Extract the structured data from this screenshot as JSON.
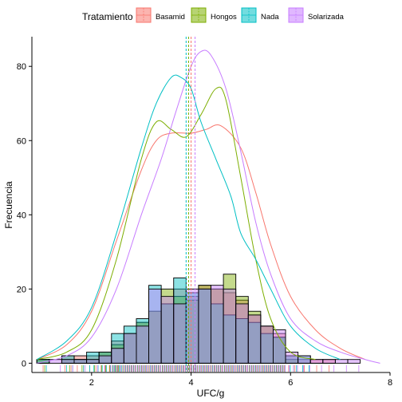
{
  "chart_data": {
    "type": "histogram",
    "xlabel": "UFC/g",
    "ylabel": "Frecuencia",
    "xlim": [
      0.8,
      8.0
    ],
    "ylim": [
      -2.5,
      88
    ],
    "x_ticks": [
      2,
      4,
      6,
      8
    ],
    "y_ticks": [
      0,
      20,
      40,
      60,
      80
    ],
    "legend": {
      "title": "Tratamiento",
      "position": "top",
      "entries": [
        {
          "name": "Basamid",
          "color": "#F8766D"
        },
        {
          "name": "Hongos",
          "color": "#7CAE00"
        },
        {
          "name": "Nada",
          "color": "#00BFC4"
        },
        {
          "name": "Solarizada",
          "color": "#C77CFF"
        }
      ]
    },
    "bins": {
      "start": 0.9,
      "width": 0.25,
      "count": 26
    },
    "series": [
      {
        "name": "Basamid",
        "color": "#F8766D",
        "counts": [
          1,
          0,
          2,
          2,
          2,
          3,
          6,
          8,
          11,
          14,
          16,
          20,
          18,
          21,
          20,
          19,
          17,
          13,
          10,
          8,
          2,
          1,
          1,
          1,
          0,
          0
        ],
        "density_x": [
          0.9,
          1.5,
          2.0,
          2.5,
          3.0,
          3.3,
          3.6,
          4.0,
          4.3,
          4.6,
          5.0,
          5.3,
          5.6,
          6.0,
          6.5,
          7.0,
          7.5
        ],
        "density_y": [
          1,
          5,
          14,
          33,
          52,
          60,
          62,
          62,
          63,
          64,
          58,
          46,
          32,
          18,
          9,
          4,
          1
        ],
        "mean": 4.0
      },
      {
        "name": "Hongos",
        "color": "#7CAE00",
        "counts": [
          1,
          0,
          1,
          1,
          1,
          3,
          5,
          8,
          11,
          14,
          20,
          18,
          17,
          21,
          20,
          24,
          18,
          14,
          10,
          7,
          1,
          0,
          0,
          0,
          0,
          0
        ],
        "density_x": [
          0.9,
          1.5,
          2.0,
          2.5,
          3.0,
          3.3,
          3.6,
          3.9,
          4.2,
          4.5,
          4.7,
          5.0,
          5.3,
          5.6,
          6.0,
          6.5
        ],
        "density_y": [
          1,
          3,
          9,
          28,
          55,
          65,
          63,
          61,
          67,
          74,
          71,
          50,
          28,
          12,
          3,
          1
        ],
        "mean": 3.95
      },
      {
        "name": "Nada",
        "color": "#00BFC4",
        "counts": [
          1,
          0,
          2,
          1,
          3,
          3,
          8,
          10,
          12,
          21,
          16,
          23,
          19,
          20,
          16,
          13,
          12,
          11,
          8,
          7,
          2,
          2,
          0,
          0,
          0,
          0
        ],
        "density_x": [
          0.9,
          1.5,
          2.0,
          2.5,
          3.0,
          3.3,
          3.6,
          3.8,
          4.0,
          4.2,
          4.5,
          4.8,
          5.0,
          5.3,
          5.6,
          6.0,
          6.5,
          7.0
        ],
        "density_y": [
          1,
          6,
          15,
          35,
          58,
          70,
          77,
          77,
          74,
          65,
          55,
          45,
          35,
          28,
          20,
          10,
          4,
          1
        ],
        "mean": 3.9
      },
      {
        "name": "Solarizada",
        "color": "#C77CFF",
        "counts": [
          0,
          1,
          1,
          1,
          1,
          2,
          4,
          8,
          10,
          20,
          18,
          16,
          20,
          20,
          21,
          20,
          16,
          13,
          10,
          9,
          3,
          2,
          1,
          1,
          1,
          1
        ],
        "density_x": [
          0.9,
          1.5,
          2.0,
          2.5,
          3.0,
          3.4,
          3.7,
          4.0,
          4.2,
          4.4,
          4.7,
          5.0,
          5.3,
          5.6,
          6.0,
          6.5,
          7.0,
          7.5,
          7.8
        ],
        "density_y": [
          0,
          2,
          7,
          20,
          40,
          55,
          68,
          80,
          84,
          83,
          74,
          57,
          38,
          24,
          12,
          6,
          3,
          1,
          0
        ],
        "mean": 4.08
      }
    ]
  }
}
